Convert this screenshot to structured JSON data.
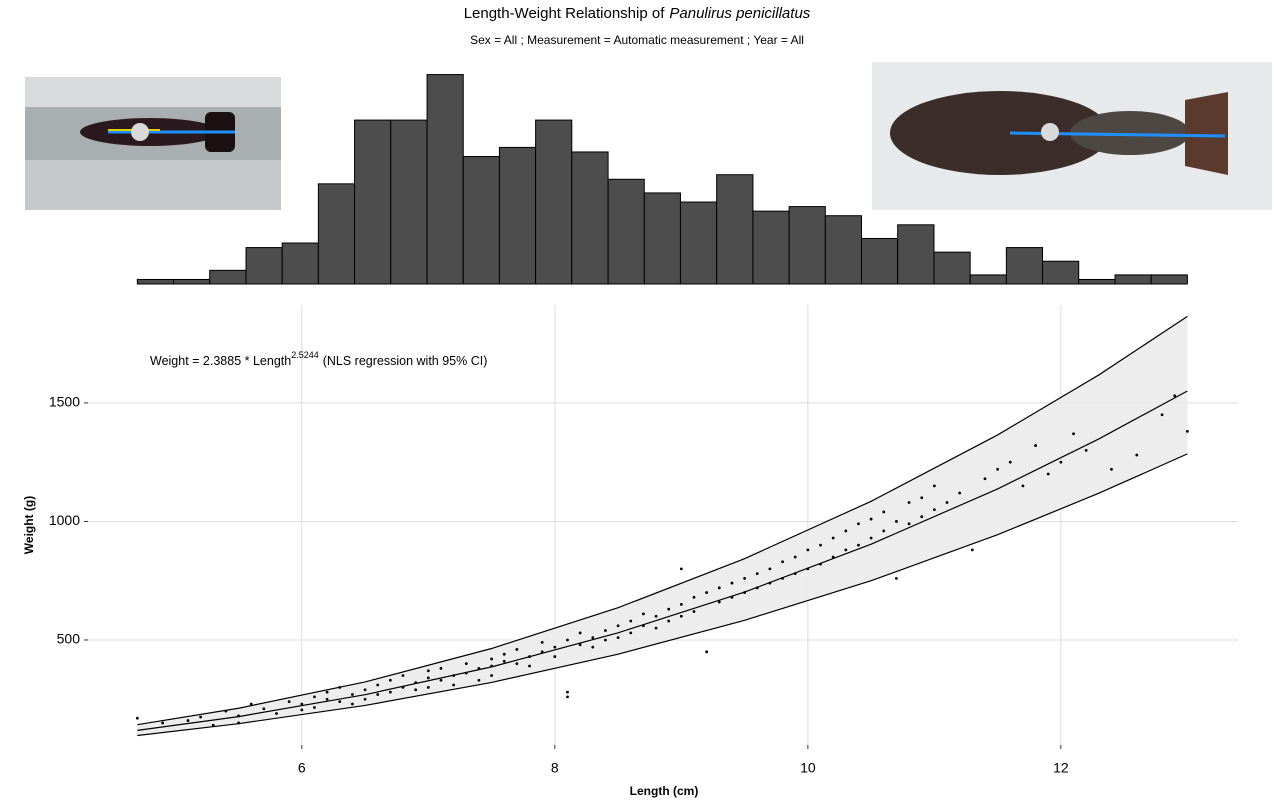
{
  "chart_data": [
    {
      "type": "histogram",
      "color": "#4d4d4d",
      "bins": [
        4.7,
        4.986,
        5.272,
        5.559,
        5.845,
        6.131,
        6.417,
        6.703,
        6.99,
        7.276,
        7.562,
        7.848,
        8.134,
        8.421,
        8.707,
        8.993,
        9.279,
        9.566,
        9.852,
        10.138,
        10.424,
        10.71,
        10.997,
        11.283,
        11.569,
        11.855,
        12.141,
        12.428,
        12.714,
        13.0
      ],
      "counts": [
        1,
        1,
        3,
        8,
        9,
        22,
        36,
        36,
        46,
        28,
        30,
        36,
        29,
        23,
        20,
        18,
        24,
        16,
        17,
        15,
        10,
        13,
        7,
        2,
        8,
        5,
        1,
        2,
        2
      ],
      "xlim": [
        4.31,
        13.4
      ],
      "ylim": [
        0,
        47
      ]
    },
    {
      "type": "scatter",
      "title": "Length-Weight Relationship of",
      "title_species": "Panulirus penicillatus",
      "subtitle": "Sex = All ; Measurement = Automatic measurement ; Year = All",
      "annotation": "Weight = 2.3885 * Length",
      "annotation_exponent": "2.5244",
      "annotation_note": "(NLS regression with 95% CI)",
      "xlabel": "Length (cm)",
      "ylabel": "Weight (g)",
      "xlim": [
        4.31,
        13.4
      ],
      "ylim": [
        57,
        1913
      ],
      "xticks": [
        6,
        8,
        10,
        12
      ],
      "yticks": [
        500,
        1000,
        1500
      ],
      "grid": true,
      "point_color": "#000000",
      "band_color": "#ebebeb",
      "points": {
        "x": [
          4.7,
          4.9,
          5.1,
          5.2,
          5.3,
          5.4,
          5.5,
          5.5,
          5.6,
          5.7,
          5.8,
          5.9,
          6.0,
          6.0,
          6.1,
          6.1,
          6.2,
          6.2,
          6.3,
          6.3,
          6.4,
          6.4,
          6.5,
          6.5,
          6.6,
          6.6,
          6.7,
          6.7,
          6.8,
          6.8,
          6.9,
          6.9,
          7.0,
          7.0,
          7.0,
          7.1,
          7.1,
          7.2,
          7.2,
          7.3,
          7.3,
          7.4,
          7.4,
          7.5,
          7.5,
          7.5,
          7.6,
          7.6,
          7.7,
          7.7,
          7.8,
          7.8,
          7.9,
          7.9,
          8.0,
          8.0,
          8.1,
          8.1,
          8.1,
          8.2,
          8.2,
          8.3,
          8.3,
          8.4,
          8.4,
          8.5,
          8.5,
          8.6,
          8.6,
          8.7,
          8.7,
          8.8,
          8.8,
          8.9,
          8.9,
          9.0,
          9.0,
          9.0,
          9.1,
          9.1,
          9.2,
          9.2,
          9.3,
          9.3,
          9.4,
          9.4,
          9.5,
          9.5,
          9.6,
          9.6,
          9.7,
          9.7,
          9.8,
          9.8,
          9.9,
          9.9,
          10.0,
          10.0,
          10.1,
          10.1,
          10.2,
          10.2,
          10.3,
          10.3,
          10.4,
          10.4,
          10.5,
          10.5,
          10.6,
          10.6,
          10.7,
          10.7,
          10.8,
          10.8,
          10.9,
          10.9,
          11.0,
          11.0,
          11.1,
          11.2,
          11.3,
          11.4,
          11.5,
          11.6,
          11.7,
          11.8,
          11.9,
          12.0,
          12.1,
          12.2,
          12.4,
          12.6,
          12.8,
          12.9,
          13.0
        ],
        "y": [
          170,
          150,
          160,
          175,
          140,
          200,
          180,
          150,
          230,
          210,
          190,
          240,
          230,
          205,
          260,
          215,
          250,
          280,
          240,
          300,
          270,
          230,
          290,
          250,
          310,
          270,
          330,
          280,
          300,
          350,
          320,
          290,
          340,
          300,
          370,
          330,
          380,
          350,
          310,
          360,
          400,
          380,
          330,
          390,
          420,
          350,
          410,
          440,
          400,
          460,
          430,
          390,
          450,
          490,
          470,
          430,
          280,
          260,
          500,
          480,
          530,
          510,
          470,
          540,
          500,
          560,
          510,
          580,
          530,
          560,
          610,
          600,
          550,
          630,
          580,
          650,
          600,
          800,
          680,
          620,
          700,
          450,
          720,
          660,
          740,
          680,
          760,
          700,
          780,
          720,
          800,
          740,
          830,
          760,
          850,
          780,
          880,
          800,
          900,
          820,
          930,
          850,
          960,
          880,
          990,
          900,
          1010,
          930,
          960,
          1040,
          1000,
          760,
          1080,
          990,
          1100,
          1020,
          1150,
          1050,
          1080,
          1120,
          880,
          1180,
          1220,
          1250,
          1150,
          1320,
          1200,
          1250,
          1370,
          1300,
          1220,
          1280,
          1450,
          1530,
          1380
        ]
      },
      "fit": {
        "x": [
          4.7,
          5.5,
          6.5,
          7.5,
          8.5,
          9.5,
          10.5,
          11.5,
          12.3,
          13.0
        ],
        "values": [
          118.8,
          176.8,
          269.3,
          386.5,
          530.2,
          702.2,
          904.1,
          1137.2,
          1348.1,
          1550.2
        ],
        "upper": [
          142.6,
          212,
          323,
          464,
          636,
          843,
          1085,
          1365,
          1618,
          1865
        ],
        "lower": [
          97,
          147,
          224,
          321,
          440,
          583,
          750,
          944,
          1119,
          1285
        ]
      }
    }
  ]
}
